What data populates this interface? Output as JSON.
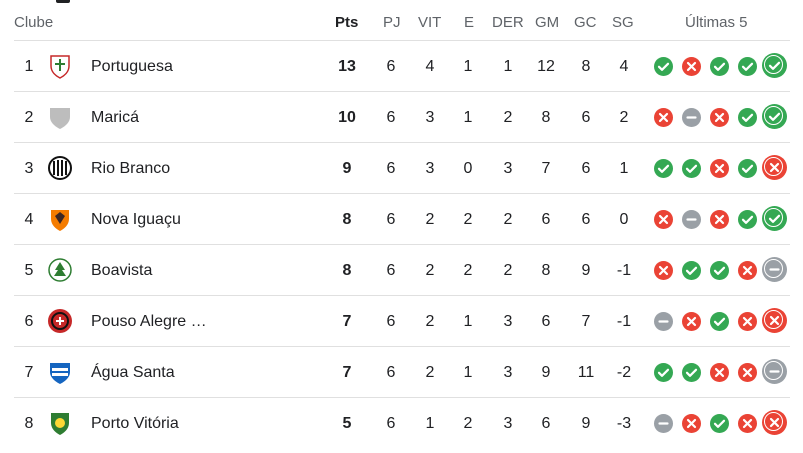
{
  "header": {
    "club": "Clube",
    "pts": "Pts",
    "pj": "PJ",
    "vit": "VIT",
    "e": "E",
    "der": "DER",
    "gm": "GM",
    "gc": "GC",
    "sg": "SG",
    "last5": "Últimas 5"
  },
  "colors": {
    "win": "#34a853",
    "loss": "#ea4335",
    "draw": "#9aa0a6"
  },
  "rows": [
    {
      "pos": "1",
      "team": "Portuguesa",
      "pts": "13",
      "pj": "6",
      "vit": "4",
      "e": "1",
      "der": "1",
      "gm": "12",
      "gc": "8",
      "sg": "4",
      "form": [
        "W",
        "L",
        "W",
        "W",
        "W"
      ]
    },
    {
      "pos": "2",
      "team": "Maricá",
      "pts": "10",
      "pj": "6",
      "vit": "3",
      "e": "1",
      "der": "2",
      "gm": "8",
      "gc": "6",
      "sg": "2",
      "form": [
        "L",
        "D",
        "L",
        "W",
        "W"
      ]
    },
    {
      "pos": "3",
      "team": "Rio Branco",
      "pts": "9",
      "pj": "6",
      "vit": "3",
      "e": "0",
      "der": "3",
      "gm": "7",
      "gc": "6",
      "sg": "1",
      "form": [
        "W",
        "W",
        "L",
        "W",
        "L"
      ]
    },
    {
      "pos": "4",
      "team": "Nova Iguaçu",
      "pts": "8",
      "pj": "6",
      "vit": "2",
      "e": "2",
      "der": "2",
      "gm": "6",
      "gc": "6",
      "sg": "0",
      "form": [
        "L",
        "D",
        "L",
        "W",
        "W"
      ]
    },
    {
      "pos": "5",
      "team": "Boavista",
      "pts": "8",
      "pj": "6",
      "vit": "2",
      "e": "2",
      "der": "2",
      "gm": "8",
      "gc": "9",
      "sg": "-1",
      "form": [
        "L",
        "W",
        "W",
        "L",
        "D"
      ]
    },
    {
      "pos": "6",
      "team": "Pouso Alegre …",
      "pts": "7",
      "pj": "6",
      "vit": "2",
      "e": "1",
      "der": "3",
      "gm": "6",
      "gc": "7",
      "sg": "-1",
      "form": [
        "D",
        "L",
        "W",
        "L",
        "L"
      ]
    },
    {
      "pos": "7",
      "team": "Água Santa",
      "pts": "7",
      "pj": "6",
      "vit": "2",
      "e": "1",
      "der": "3",
      "gm": "9",
      "gc": "11",
      "sg": "-2",
      "form": [
        "W",
        "W",
        "L",
        "L",
        "D"
      ]
    },
    {
      "pos": "8",
      "team": "Porto Vitória",
      "pts": "5",
      "pj": "6",
      "vit": "1",
      "e": "2",
      "der": "3",
      "gm": "6",
      "gc": "9",
      "sg": "-3",
      "form": [
        "D",
        "L",
        "W",
        "L",
        "L"
      ]
    }
  ]
}
